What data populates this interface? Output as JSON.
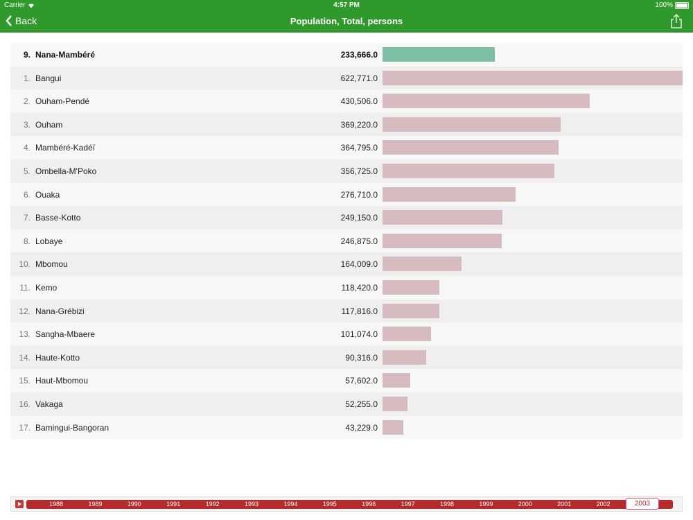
{
  "status": {
    "carrier": "Carrier",
    "time": "4:57 PM",
    "battery": "100%"
  },
  "nav": {
    "back_label": "Back",
    "title": "Population, Total, persons"
  },
  "chart_data": {
    "type": "bar",
    "max_value": 622771,
    "rows": [
      {
        "rank": "9.",
        "name": "Nana-Mambéré",
        "value_label": "233,666.0",
        "value": 233666,
        "highlight": true
      },
      {
        "rank": "1.",
        "name": "Bangui",
        "value_label": "622,771.0",
        "value": 622771
      },
      {
        "rank": "2.",
        "name": "Ouham-Pendé",
        "value_label": "430,506.0",
        "value": 430506
      },
      {
        "rank": "3.",
        "name": "Ouham",
        "value_label": "369,220.0",
        "value": 369220
      },
      {
        "rank": "4.",
        "name": "Mambéré-Kadéï",
        "value_label": "364,795.0",
        "value": 364795
      },
      {
        "rank": "5.",
        "name": "Ombella-M'Poko",
        "value_label": "356,725.0",
        "value": 356725
      },
      {
        "rank": "6.",
        "name": "Ouaka",
        "value_label": "276,710.0",
        "value": 276710
      },
      {
        "rank": "7.",
        "name": "Basse-Kotto",
        "value_label": "249,150.0",
        "value": 249150
      },
      {
        "rank": "8.",
        "name": "Lobaye",
        "value_label": "246,875.0",
        "value": 246875
      },
      {
        "rank": "10.",
        "name": "Mbomou",
        "value_label": "164,009.0",
        "value": 164009
      },
      {
        "rank": "11.",
        "name": "Kemo",
        "value_label": "118,420.0",
        "value": 118420
      },
      {
        "rank": "12.",
        "name": "Nana-Grébizi",
        "value_label": "117,816.0",
        "value": 117816
      },
      {
        "rank": "13.",
        "name": "Sangha-Mbaere",
        "value_label": "101,074.0",
        "value": 101074
      },
      {
        "rank": "14.",
        "name": "Haute-Kotto",
        "value_label": "90,316.0",
        "value": 90316
      },
      {
        "rank": "15.",
        "name": "Haut-Mbomou",
        "value_label": "57,602.0",
        "value": 57602
      },
      {
        "rank": "16.",
        "name": "Vakaga",
        "value_label": "52,255.0",
        "value": 52255
      },
      {
        "rank": "17.",
        "name": "Bamingui-Bangoran",
        "value_label": "43,229.0",
        "value": 43229
      }
    ]
  },
  "timeline": {
    "years": [
      "1988",
      "1989",
      "1990",
      "1991",
      "1992",
      "1993",
      "1994",
      "1995",
      "1996",
      "1997",
      "1998",
      "1999",
      "2000",
      "2001",
      "2002",
      "2003"
    ],
    "selected": "2003"
  },
  "colors": {
    "header": "#2f9a2b",
    "bar": "#d7bcbf",
    "highlight_bar": "#7ebfa3",
    "timeline": "#b52b2b"
  }
}
